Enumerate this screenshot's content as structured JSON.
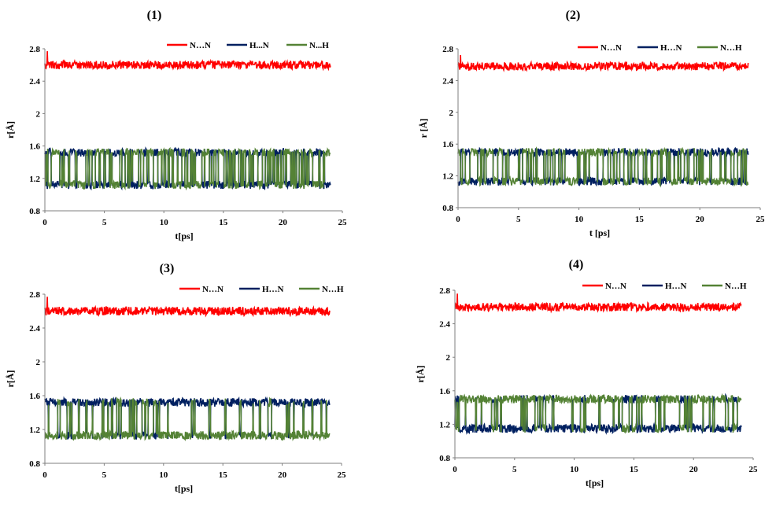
{
  "figure": {
    "description": "Four panels of time series of interatomic distances",
    "colors": {
      "NN": "#ff0000",
      "HN": "#002060",
      "NH": "#548235"
    }
  },
  "chart_data": [
    {
      "type": "line",
      "title": "(1)",
      "xlabel": "t[ps]",
      "ylabel": "r[Å]",
      "xlim": [
        0,
        25
      ],
      "ylim": [
        0.8,
        2.8
      ],
      "xticks": [
        0,
        5,
        10,
        15,
        20,
        25
      ],
      "yticks": [
        0.8,
        1.2,
        1.6,
        2,
        2.4,
        2.8
      ],
      "ytick_labels": [
        "0.8",
        "1.2",
        "1.6",
        "2",
        "2.4",
        "2.8"
      ],
      "legend": [
        "N…N",
        "H...N",
        "N...H"
      ],
      "legend_position": "top-right",
      "t_end": 24,
      "series": [
        {
          "name": "N…N",
          "key": "NN",
          "mode": "noise",
          "mean": 2.6,
          "amp": 0.05,
          "spike": 2.77
        },
        {
          "name": "H...N",
          "key": "HN",
          "mode": "switch",
          "low": 1.12,
          "high": 1.52,
          "amp": 0.05,
          "frac_high": 0.5
        },
        {
          "name": "N...H",
          "key": "NH",
          "mode": "switch",
          "low": 1.12,
          "high": 1.52,
          "amp": 0.05,
          "frac_high": 0.5,
          "complement": true
        }
      ]
    },
    {
      "type": "line",
      "title": "(2)",
      "xlabel": "t [ps]",
      "ylabel": "r [Å]",
      "xlim": [
        0,
        25
      ],
      "ylim": [
        0.8,
        2.8
      ],
      "xticks": [
        0,
        5,
        10,
        15,
        20,
        25
      ],
      "yticks": [
        0.8,
        1.2,
        1.6,
        2,
        2.4,
        2.8
      ],
      "ytick_labels": [
        "0.8",
        "1.2",
        "1.6",
        "2",
        "2.4",
        "2.8"
      ],
      "legend": [
        "N…N",
        "H…N",
        "N…H"
      ],
      "legend_position": "top-right",
      "t_end": 24,
      "series": [
        {
          "name": "N…N",
          "key": "NN",
          "mode": "noise",
          "mean": 2.58,
          "amp": 0.05,
          "spike": 2.72
        },
        {
          "name": "H…N",
          "key": "HN",
          "mode": "switch",
          "low": 1.13,
          "high": 1.5,
          "amp": 0.05,
          "frac_high": 0.5
        },
        {
          "name": "N…H",
          "key": "NH",
          "mode": "switch",
          "low": 1.13,
          "high": 1.5,
          "amp": 0.05,
          "frac_high": 0.5,
          "complement": true
        }
      ]
    },
    {
      "type": "line",
      "title": "(3)",
      "xlabel": "t[ps]",
      "ylabel": "r[Å]",
      "xlim": [
        0,
        25
      ],
      "ylim": [
        0.8,
        2.8
      ],
      "xticks": [
        0,
        5,
        10,
        15,
        20,
        25
      ],
      "yticks": [
        0.8,
        1.2,
        1.6,
        2,
        2.4,
        2.8
      ],
      "ytick_labels": [
        "0.8",
        "1.2",
        "1.6",
        "2",
        "2.4",
        "2.8"
      ],
      "legend": [
        "N…N",
        "H…N",
        "N…H"
      ],
      "legend_position": "top-right",
      "t_end": 24,
      "series": [
        {
          "name": "N…N",
          "key": "NN",
          "mode": "noise",
          "mean": 2.6,
          "amp": 0.05,
          "spike": 2.77
        },
        {
          "name": "H…N",
          "key": "HN",
          "mode": "switch",
          "low": 1.13,
          "high": 1.52,
          "amp": 0.05,
          "frac_high": 0.82
        },
        {
          "name": "N…H",
          "key": "NH",
          "mode": "switch",
          "low": 1.13,
          "high": 1.52,
          "amp": 0.05,
          "frac_high": 0.82,
          "complement": true
        }
      ]
    },
    {
      "type": "line",
      "title": "(4)",
      "xlabel": "t[ps]",
      "ylabel": "r[Å]",
      "xlim": [
        0,
        25
      ],
      "ylim": [
        0.8,
        2.8
      ],
      "xticks": [
        0,
        5,
        10,
        15,
        20,
        25
      ],
      "yticks": [
        0.8,
        1.2,
        1.6,
        2,
        2.4,
        2.8
      ],
      "ytick_labels": [
        "0.8",
        "1.2",
        "1.6",
        "2",
        "2.4",
        "2.8"
      ],
      "legend": [
        "N…N",
        "H…N",
        "N…H"
      ],
      "legend_position": "top-right",
      "t_end": 24,
      "series": [
        {
          "name": "N…N",
          "key": "NN",
          "mode": "noise",
          "mean": 2.6,
          "amp": 0.05,
          "spike": 2.76
        },
        {
          "name": "H…N",
          "key": "HN",
          "mode": "switch",
          "low": 1.15,
          "high": 1.5,
          "amp": 0.05,
          "frac_high": 0.22
        },
        {
          "name": "N…H",
          "key": "NH",
          "mode": "switch",
          "low": 1.15,
          "high": 1.5,
          "amp": 0.05,
          "frac_high": 0.22,
          "complement": true
        }
      ]
    }
  ]
}
